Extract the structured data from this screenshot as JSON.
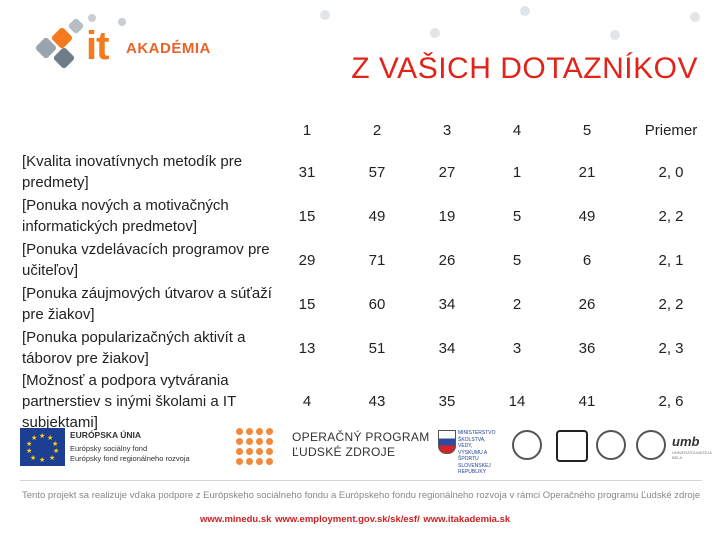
{
  "logo": {
    "it": "it",
    "academia": "AKADÉMIA"
  },
  "title": "Z VAŠICH DOTAZNÍKOV",
  "table": {
    "headers": [
      "1",
      "2",
      "3",
      "4",
      "5",
      "Priemer"
    ],
    "rows": [
      {
        "label": "[Kvalita inovatívnych metodík pre predmety]",
        "values": [
          "31",
          "57",
          "27",
          "1",
          "21",
          "2, 0"
        ]
      },
      {
        "label": "[Ponuka nových a motivačných informatických predmetov]",
        "values": [
          "15",
          "49",
          "19",
          "5",
          "49",
          "2, 2"
        ]
      },
      {
        "label": "[Ponuka vzdelávacích programov pre učiteľov]",
        "values": [
          "29",
          "71",
          "26",
          "5",
          "6",
          "2, 1"
        ]
      },
      {
        "label": "[Ponuka záujmových útvarov a súťaží pre žiakov]",
        "values": [
          "15",
          "60",
          "34",
          "2",
          "26",
          "2, 2"
        ]
      },
      {
        "label": "[Ponuka popularizačných aktivít a táborov pre žiakov]",
        "values": [
          "13",
          "51",
          "34",
          "3",
          "36",
          "2, 3"
        ]
      },
      {
        "label": "[Možnosť a podpora vytvárania partnerstiev s inými školami a IT subjektami]",
        "values": [
          "4",
          "43",
          "35",
          "14",
          "41",
          "2, 6"
        ]
      }
    ]
  },
  "footer": {
    "eu_title": "EURÓPSKA ÚNIA",
    "eu_fund1": "Európsky sociálny fond",
    "eu_fund2": "Európsky fond regionálneho rozvoja",
    "op_line1": "OPERAČNÝ PROGRAM",
    "op_line2": "ĽUDSKÉ ZDROJE",
    "ministry": "MINISTERSTVO ŠKOLSTVA, VEDY, VÝSKUMU A ŠPORTU SLOVENSKEJ REPUBLIKY",
    "umb": "umb",
    "umb_sub": "UNIVERZITA MATEJA BELA",
    "project_text": "Tento projekt sa realizuje vďaka podpore z Európskeho sociálneho fondu a Európskeho fondu regionálneho rozvoja v rámci Operačného programu Ľudské zdroje",
    "urls": "www.minedu.sk   www.employment.gov.sk/sk/esf/   www.itakademia.sk"
  },
  "colors": {
    "accent": "#f47a20",
    "title": "#e2231a",
    "eu_blue": "#1c3f94",
    "eu_star": "#ffd200"
  }
}
